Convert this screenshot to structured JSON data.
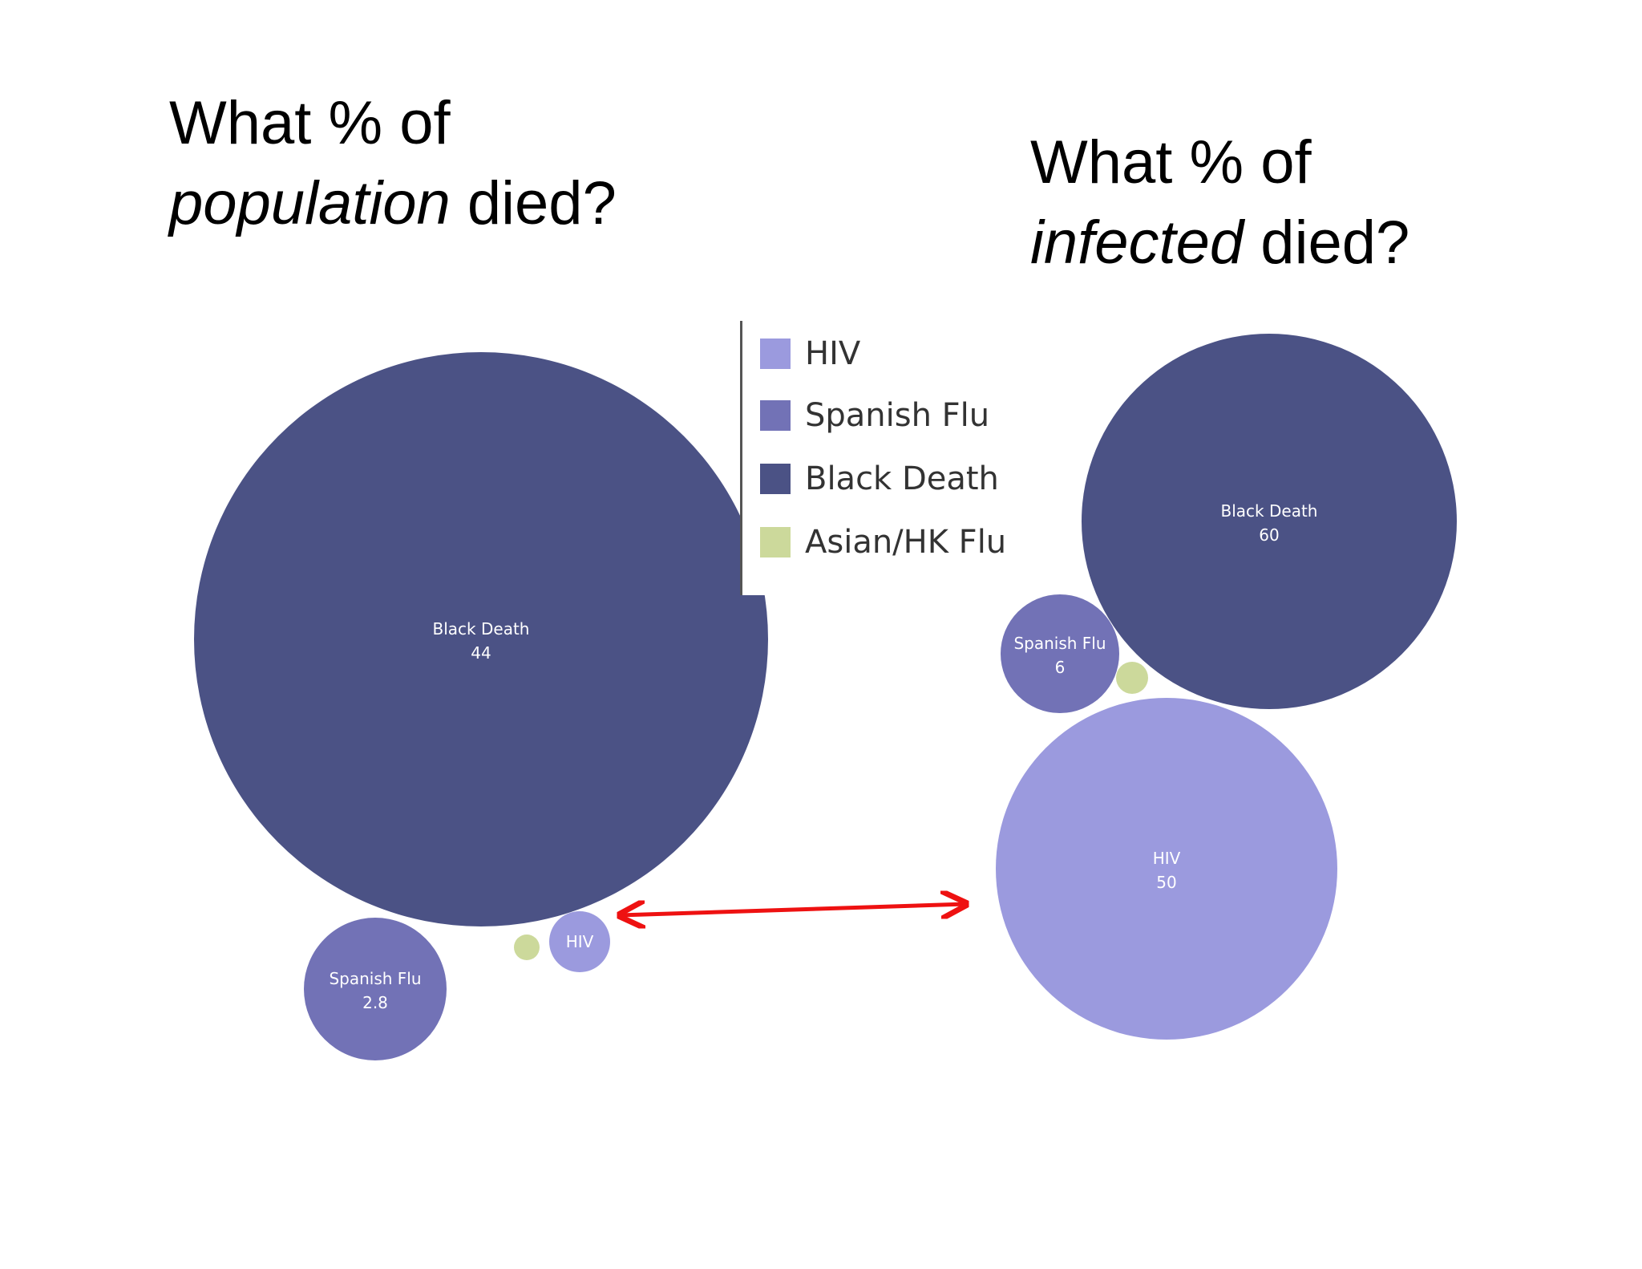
{
  "headlines": {
    "left": {
      "line1": "What % of",
      "emphasis": "population",
      "rest": " died?"
    },
    "right": {
      "line1": "What % of",
      "emphasis": "infected",
      "rest": " died?"
    }
  },
  "legend": [
    {
      "label": "HIV",
      "color": "#9b9ade"
    },
    {
      "label": "Spanish Flu",
      "color": "#7272b6"
    },
    {
      "label": "Black Death",
      "color": "#4b5285"
    },
    {
      "label": "Asian/HK Flu",
      "color": "#ccd99b"
    }
  ],
  "chart_data": [
    {
      "type": "bubble",
      "title": "What % of population died?",
      "series": [
        {
          "name": "Black Death",
          "value": 44,
          "label": "Black Death",
          "value_label": "44"
        },
        {
          "name": "Spanish Flu",
          "value": 2.8,
          "label": "Spanish Flu",
          "value_label": "2.8"
        },
        {
          "name": "HIV",
          "value": null,
          "label": "HIV",
          "value_label": ""
        },
        {
          "name": "Asian/HK Flu",
          "value": null,
          "label": "",
          "value_label": ""
        }
      ]
    },
    {
      "type": "bubble",
      "title": "What % of infected died?",
      "series": [
        {
          "name": "Black Death",
          "value": 60,
          "label": "Black Death",
          "value_label": "60"
        },
        {
          "name": "HIV",
          "value": 50,
          "label": "HIV",
          "value_label": "50"
        },
        {
          "name": "Spanish Flu",
          "value": 6,
          "label": "Spanish Flu",
          "value_label": "6"
        },
        {
          "name": "Asian/HK Flu",
          "value": null,
          "label": "",
          "value_label": ""
        }
      ]
    }
  ],
  "annotation": {
    "type": "double-arrow",
    "color": "#ee1111"
  }
}
